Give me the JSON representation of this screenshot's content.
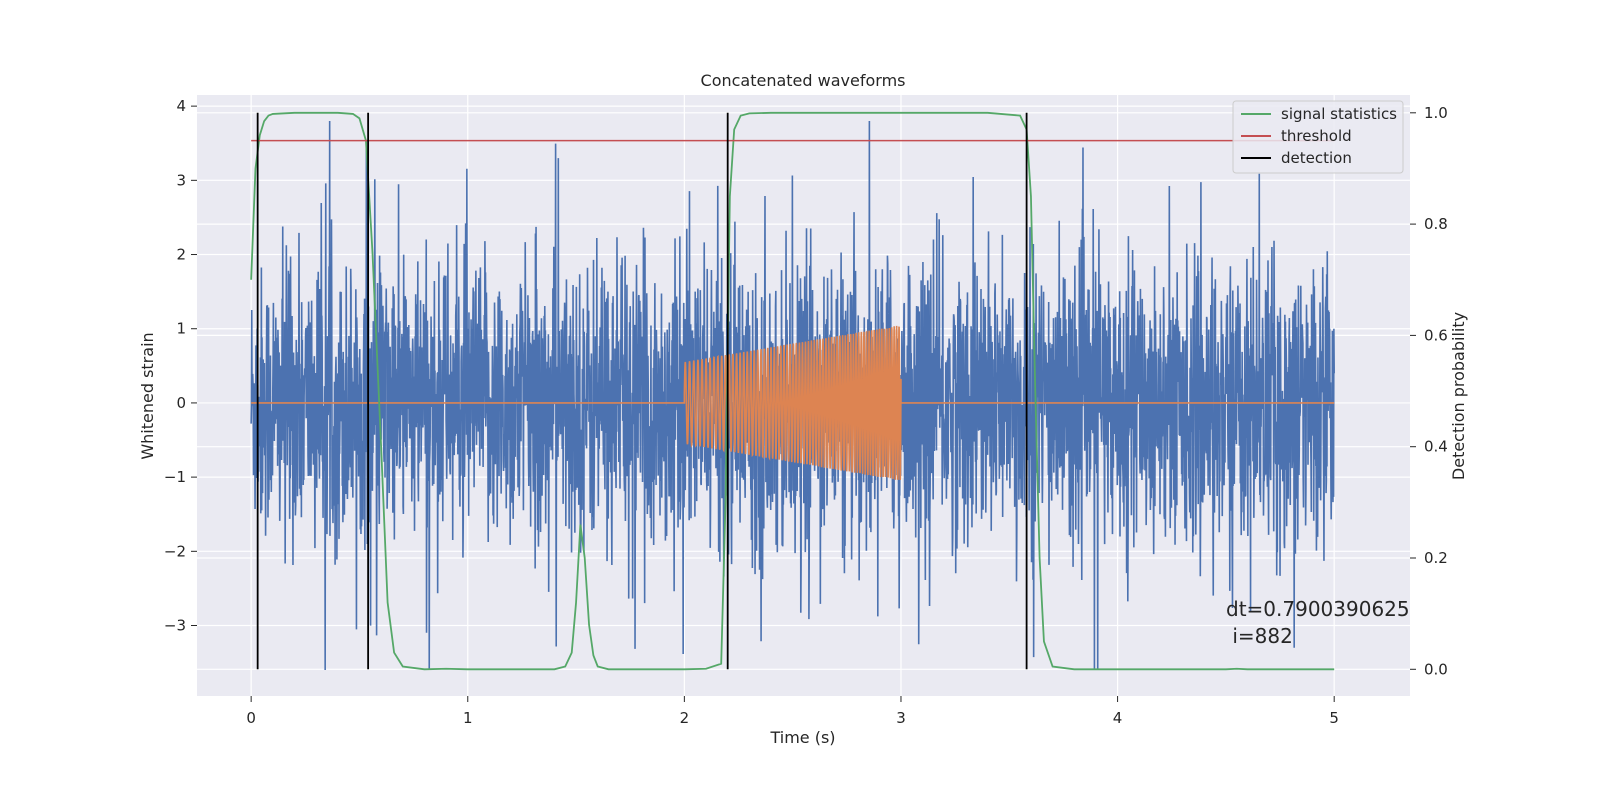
{
  "chart_data": {
    "type": "line",
    "title": "Concatenated waveforms",
    "xlabel": "Time (s)",
    "ylabel_left": "Whitened strain",
    "ylabel_right": "Detection probability",
    "xlim": [
      -0.25,
      5.35
    ],
    "ylim_left": [
      -3.95,
      4.15
    ],
    "ylim_right": [
      -0.048,
      1.032
    ],
    "x_ticks": [
      0,
      1,
      2,
      3,
      4,
      5
    ],
    "x_tick_labels": [
      "0",
      "1",
      "2",
      "3",
      "4",
      "5"
    ],
    "y_left_ticks": [
      -3,
      -2,
      -1,
      0,
      1,
      2,
      3,
      4
    ],
    "y_left_tick_labels": [
      "−3",
      "−2",
      "−1",
      "0",
      "1",
      "2",
      "3",
      "4"
    ],
    "y_right_ticks": [
      0.0,
      0.2,
      0.4,
      0.6,
      0.8,
      1.0
    ],
    "y_right_tick_labels": [
      "0.0",
      "0.2",
      "0.4",
      "0.6",
      "0.8",
      "1.0"
    ],
    "grid": true,
    "legend_position": "top-right",
    "colors": {
      "background": "#eaeaf2",
      "strain": "#4c72b0",
      "injected_signal": "#dd8452",
      "signal_statistics": "#55a868",
      "threshold": "#c44e52",
      "detection": "#000000",
      "grid": "#ffffff"
    },
    "noise": {
      "x_start": 0.0,
      "x_end": 5.0,
      "typical_peak": 2.0,
      "max_peak_positive": 3.8,
      "max_peak_negative": -3.6
    },
    "injected_signal": {
      "x_start": 2.0,
      "x_end": 3.0,
      "amplitude_start": 0.55,
      "amplitude_end": 1.05
    },
    "signal_statistics": {
      "x": [
        0.0,
        0.02,
        0.04,
        0.06,
        0.08,
        0.1,
        0.2,
        0.3,
        0.4,
        0.47,
        0.5,
        0.53,
        0.56,
        0.6,
        0.63,
        0.66,
        0.7,
        0.8,
        0.9,
        1.0,
        1.2,
        1.4,
        1.45,
        1.48,
        1.5,
        1.52,
        1.54,
        1.56,
        1.58,
        1.6,
        1.65,
        1.8,
        2.0,
        2.1,
        2.17,
        2.19,
        2.21,
        2.23,
        2.26,
        2.3,
        2.4,
        3.0,
        3.4,
        3.55,
        3.58,
        3.6,
        3.62,
        3.64,
        3.66,
        3.7,
        3.8,
        4.0,
        4.5,
        4.55,
        4.6,
        5.0
      ],
      "y": [
        0.7,
        0.9,
        0.96,
        0.985,
        0.995,
        0.998,
        1.0,
        1.0,
        1.0,
        0.998,
        0.99,
        0.95,
        0.75,
        0.4,
        0.12,
        0.03,
        0.005,
        0.0,
        0.001,
        0.0,
        0.0,
        0.0,
        0.005,
        0.03,
        0.12,
        0.26,
        0.2,
        0.08,
        0.025,
        0.005,
        0.0,
        0.0,
        0.0,
        0.001,
        0.01,
        0.3,
        0.85,
        0.97,
        0.995,
        0.999,
        1.0,
        1.0,
        1.0,
        0.995,
        0.97,
        0.85,
        0.5,
        0.2,
        0.05,
        0.005,
        0.0,
        0.0,
        0.0,
        0.001,
        0.0,
        0.0
      ]
    },
    "threshold": {
      "value": 0.95,
      "x_start": 0.0,
      "x_end": 5.0
    },
    "detections": [
      0.03,
      0.54,
      2.2,
      3.58
    ],
    "legend": [
      {
        "label": "signal statistics",
        "color": "#55a868"
      },
      {
        "label": "threshold",
        "color": "#c44e52"
      },
      {
        "label": "detection",
        "color": "#000000"
      }
    ],
    "annotation": {
      "line1": "dt=0.7900390625",
      "line2": " i=882",
      "x": 4.5,
      "y": -2.8
    }
  }
}
